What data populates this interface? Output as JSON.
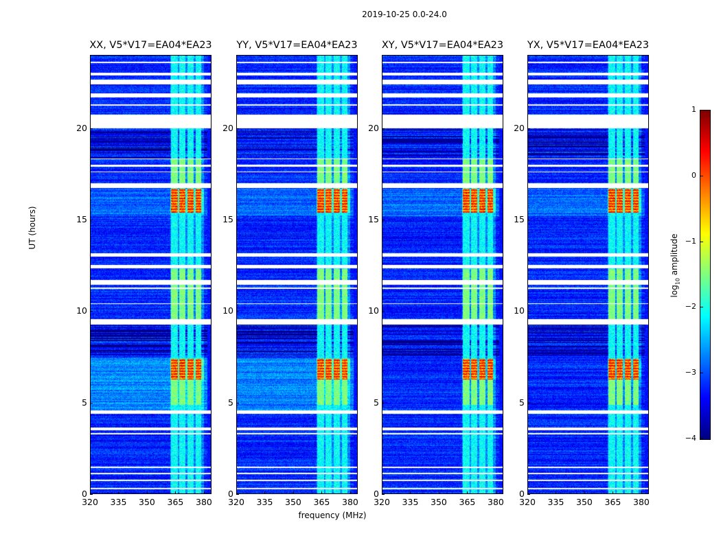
{
  "chart_data": {
    "type": "heatmap",
    "title": "2019-10-25 0.0-24.0",
    "xlabel": "frequency (MHz)",
    "ylabel": "UT (hours)",
    "xlim": [
      320,
      384
    ],
    "ylim": [
      0,
      24
    ],
    "xticks": [
      "320",
      "335",
      "350",
      "365",
      "380"
    ],
    "yticks": [
      "0",
      "5",
      "10",
      "15",
      "20"
    ],
    "panels": [
      {
        "title": "XX, V5*V17=EA04*EA23"
      },
      {
        "title": "YY, V5*V17=EA04*EA23"
      },
      {
        "title": "XY, V5*V17=EA04*EA23"
      },
      {
        "title": "YX, V5*V17=EA04*EA23"
      }
    ],
    "colorbar": {
      "label": "log10 amplitude",
      "label_main": "log",
      "label_sub": "10",
      "label_rest": " amplitude",
      "range": [
        -4,
        1
      ],
      "ticks": [
        "1",
        "0",
        "−1",
        "−2",
        "−3",
        "−4"
      ],
      "colormap": "jet"
    },
    "flagged_hours": [
      [
        23.55,
        23.65
      ],
      [
        22.9,
        23.05
      ],
      [
        22.4,
        22.65
      ],
      [
        21.7,
        21.9
      ],
      [
        21.25,
        21.3
      ],
      [
        20.0,
        20.75
      ],
      [
        18.3,
        18.35
      ],
      [
        17.9,
        18.0
      ],
      [
        17.6,
        17.65
      ],
      [
        16.75,
        17.0
      ],
      [
        13.0,
        13.2
      ],
      [
        12.35,
        12.55
      ],
      [
        11.45,
        11.7
      ],
      [
        11.25,
        11.3
      ],
      [
        10.4,
        10.45
      ],
      [
        9.3,
        9.6
      ],
      [
        4.4,
        4.6
      ],
      [
        3.5,
        3.65
      ],
      [
        3.3,
        3.35
      ],
      [
        1.45,
        1.5
      ],
      [
        1.1,
        1.2
      ],
      [
        0.75,
        0.8
      ],
      [
        0.3,
        0.35
      ]
    ],
    "rfi_channels_mhz": [
      [
        362.5,
        366
      ],
      [
        367,
        370
      ],
      [
        371,
        374.5
      ],
      [
        375.5,
        378.5
      ]
    ],
    "strong_rfi_hours": [
      [
        6.3,
        7.4
      ],
      [
        15.4,
        16.7
      ]
    ],
    "moderate_rfi_hours": [
      [
        9.6,
        12.3
      ],
      [
        16.9,
        18.3
      ],
      [
        4.9,
        6.3
      ]
    ],
    "value_range": [
      -4,
      1
    ]
  }
}
